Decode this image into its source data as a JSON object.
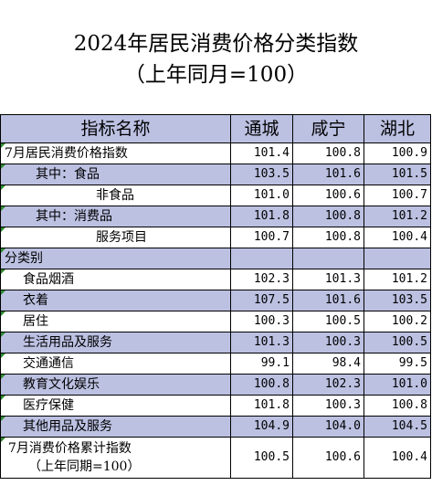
{
  "title": {
    "line1": "2024年居民消费价格分类指数",
    "line2": "（上年同月=100）"
  },
  "table": {
    "headers": [
      "指标名称",
      "通城",
      "咸宁",
      "湖北"
    ],
    "rows": [
      {
        "label": "7月居民消费价格指数",
        "values": [
          "101.4",
          "100.8",
          "100.9"
        ]
      },
      {
        "label": "其中：食品",
        "values": [
          "103.5",
          "101.6",
          "101.5"
        ]
      },
      {
        "label": "非食品",
        "values": [
          "101.0",
          "100.6",
          "100.7"
        ]
      },
      {
        "label": "其中：消费品",
        "values": [
          "101.8",
          "100.8",
          "101.2"
        ]
      },
      {
        "label": "服务项目",
        "values": [
          "100.7",
          "100.8",
          "100.4"
        ]
      },
      {
        "label": "分类别",
        "values": [
          "",
          "",
          ""
        ]
      },
      {
        "label": "食品烟酒",
        "values": [
          "102.3",
          "101.3",
          "101.2"
        ]
      },
      {
        "label": "衣着",
        "values": [
          "107.5",
          "101.6",
          "103.5"
        ]
      },
      {
        "label": "居住",
        "values": [
          "100.3",
          "100.5",
          "100.2"
        ]
      },
      {
        "label": "生活用品及服务",
        "values": [
          "101.3",
          "100.3",
          "100.5"
        ]
      },
      {
        "label": "交通通信",
        "values": [
          "99.1",
          "98.4",
          "99.5"
        ]
      },
      {
        "label": "教育文化娱乐",
        "values": [
          "100.8",
          "102.3",
          "101.0"
        ]
      },
      {
        "label": "医疗保健",
        "values": [
          "101.8",
          "100.3",
          "100.8"
        ]
      },
      {
        "label": "其他用品及服务",
        "values": [
          "104.9",
          "104.0",
          "104.5"
        ]
      }
    ],
    "last_row": {
      "label_line1": "7月消费价格累计指数",
      "label_line2": "（上年同期=100）",
      "values": [
        "100.5",
        "100.6",
        "100.4"
      ]
    }
  },
  "colors": {
    "header_band": "#bcc1e2",
    "corner_tick": "#2e8b2e"
  }
}
